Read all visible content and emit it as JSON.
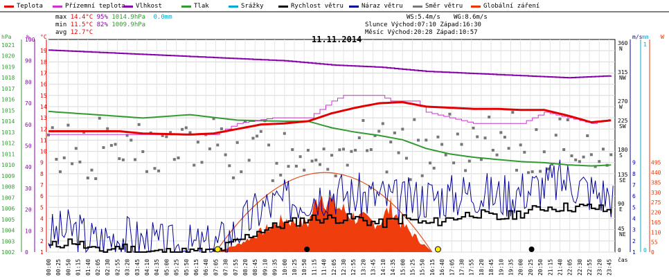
{
  "legend": [
    {
      "label": "Teplota",
      "color": "#e30000"
    },
    {
      "label": "Přízemní teplota",
      "color": "#cc33cc"
    },
    {
      "label": "Vlhkost",
      "color": "#8800aa"
    },
    {
      "label": "Tlak",
      "color": "#339933"
    },
    {
      "label": "Srážky",
      "color": "#00aacc"
    },
    {
      "label": "Rychlost větru",
      "color": "#000000"
    },
    {
      "label": "Náraz větru",
      "color": "#000099"
    },
    {
      "label": "Směr větru",
      "color": "#777777"
    },
    {
      "label": "Globální záření",
      "color": "#ee3300"
    }
  ],
  "stats": {
    "max_label": "max",
    "max_temp": "14.4°C",
    "max_hum": "95%",
    "max_press": "1014.9hPa",
    "rain": "0.0mm",
    "min_label": "min",
    "min_temp": "11.5°C",
    "min_hum": "82%",
    "min_press": "1009.9hPa",
    "avg_label": "avg",
    "avg_temp": "12.7°C",
    "ws": "WS:5.4m/s",
    "wg": "WG:8.6m/s",
    "sun": "Slunce Východ:07:10  Západ:16:30",
    "moon": "Měsíc  Východ:20:28  Západ:10:57"
  },
  "chart_data": {
    "type": "line",
    "title": "11.11.2014",
    "xlabel": "čas",
    "x_ticks": [
      "00:00",
      "00:25",
      "00:50",
      "01:15",
      "01:40",
      "02:05",
      "02:30",
      "02:55",
      "03:20",
      "03:45",
      "04:10",
      "04:35",
      "05:00",
      "05:25",
      "05:50",
      "06:15",
      "06:40",
      "07:05",
      "07:30",
      "07:55",
      "08:20",
      "08:45",
      "09:10",
      "09:35",
      "10:00",
      "10:25",
      "10:50",
      "11:15",
      "11:40",
      "12:05",
      "12:30",
      "12:55",
      "13:20",
      "13:45",
      "14:10",
      "14:35",
      "15:00",
      "15:25",
      "15:50",
      "16:15",
      "16:40",
      "17:05",
      "17:30",
      "17:55",
      "18:20",
      "18:45",
      "19:10",
      "19:35",
      "20:00",
      "20:25",
      "20:50",
      "21:15",
      "21:40",
      "22:05",
      "22:30",
      "22:55",
      "23:20",
      "23:45"
    ],
    "axes": {
      "hpa": {
        "label": "hPa",
        "ticks": [
          "1002",
          "1003",
          "1004",
          "1005",
          "1006",
          "1007",
          "1008",
          "1009",
          "1010",
          "1011",
          "1012",
          "1013",
          "1014",
          "1015",
          "1016",
          "1017",
          "1018",
          "1019",
          "1020",
          "1021"
        ]
      },
      "percent": {
        "label": "%",
        "ticks": [
          "0",
          "10",
          "20",
          "30",
          "40",
          "50",
          "60",
          "70",
          "80",
          "90",
          "100"
        ]
      },
      "celsius": {
        "label": "°C",
        "ticks": [
          "1",
          "2",
          "3",
          "4",
          "5",
          "6",
          "7",
          "8",
          "9",
          "10",
          "11",
          "12",
          "13",
          "14",
          "15",
          "16",
          "17",
          "18",
          "19"
        ]
      },
      "ms": {
        "label": "m/s",
        "ticks": [
          "1",
          "2",
          "3",
          "4",
          "5",
          "6",
          "7",
          "8",
          "9"
        ]
      },
      "mm": {
        "label": "mm",
        "ticks": [
          "0",
          "1"
        ]
      },
      "wm2": {
        "label": "W",
        "ticks": [
          "0",
          "55",
          "110",
          "165",
          "220",
          "275",
          "330",
          "385",
          "440",
          "495"
        ]
      },
      "direction": {
        "ticks": [
          "360 N",
          "315 NW",
          "270 W",
          "225 SW",
          "180 S",
          "135 SE",
          "90 E",
          "45 NE",
          "0"
        ]
      }
    },
    "series": [
      {
        "name": "Teplota",
        "unit": "°C",
        "keypoints": [
          [
            "00:00",
            11.8
          ],
          [
            "03:00",
            11.8
          ],
          [
            "04:00",
            11.6
          ],
          [
            "06:00",
            11.5
          ],
          [
            "07:00",
            11.6
          ],
          [
            "08:00",
            12.0
          ],
          [
            "09:00",
            12.4
          ],
          [
            "10:00",
            12.5
          ],
          [
            "11:00",
            12.7
          ],
          [
            "12:00",
            13.4
          ],
          [
            "13:00",
            13.9
          ],
          [
            "14:00",
            14.3
          ],
          [
            "15:00",
            14.4
          ],
          [
            "16:00",
            14.0
          ],
          [
            "17:00",
            13.9
          ],
          [
            "18:00",
            13.8
          ],
          [
            "19:00",
            13.8
          ],
          [
            "20:00",
            13.7
          ],
          [
            "21:00",
            13.7
          ],
          [
            "22:00",
            13.2
          ],
          [
            "23:00",
            12.6
          ],
          [
            "23:59",
            12.8
          ]
        ]
      },
      {
        "name": "Přízemní teplota",
        "unit": "°C",
        "keypoints": [
          [
            "00:00",
            11.5
          ],
          [
            "06:30",
            11.5
          ],
          [
            "07:00",
            11.5
          ],
          [
            "07:30",
            12.0
          ],
          [
            "08:00",
            12.5
          ],
          [
            "09:30",
            13.0
          ],
          [
            "11:00",
            13.0
          ],
          [
            "12:00",
            14.5
          ],
          [
            "12:30",
            15.0
          ],
          [
            "14:00",
            15.0
          ],
          [
            "14:30",
            14.5
          ],
          [
            "15:30",
            14.5
          ],
          [
            "16:00",
            13.5
          ],
          [
            "17:00",
            13.0
          ],
          [
            "18:00",
            12.5
          ],
          [
            "20:00",
            12.5
          ],
          [
            "21:00",
            13.5
          ],
          [
            "22:00",
            13.0
          ],
          [
            "23:00",
            12.5
          ],
          [
            "23:59",
            13.0
          ]
        ]
      },
      {
        "name": "Vlhkost",
        "unit": "%",
        "keypoints": [
          [
            "00:00",
            95
          ],
          [
            "02:00",
            94
          ],
          [
            "04:00",
            93
          ],
          [
            "06:00",
            92
          ],
          [
            "08:00",
            91
          ],
          [
            "10:00",
            90
          ],
          [
            "12:00",
            88
          ],
          [
            "14:00",
            87
          ],
          [
            "16:00",
            85
          ],
          [
            "18:00",
            84
          ],
          [
            "20:00",
            83
          ],
          [
            "22:00",
            82
          ],
          [
            "23:59",
            83
          ]
        ]
      },
      {
        "name": "Tlak",
        "unit": "hPa",
        "keypoints": [
          [
            "00:00",
            1014.9
          ],
          [
            "02:00",
            1014.6
          ],
          [
            "04:00",
            1014.3
          ],
          [
            "06:00",
            1014.6
          ],
          [
            "08:00",
            1014.1
          ],
          [
            "10:00",
            1014.0
          ],
          [
            "11:00",
            1014.0
          ],
          [
            "12:00",
            1013.4
          ],
          [
            "13:00",
            1013.0
          ],
          [
            "14:00",
            1012.7
          ],
          [
            "15:00",
            1012.3
          ],
          [
            "16:00",
            1011.5
          ],
          [
            "17:00",
            1011.0
          ],
          [
            "18:00",
            1010.7
          ],
          [
            "19:00",
            1010.5
          ],
          [
            "20:00",
            1010.3
          ],
          [
            "21:00",
            1010.2
          ],
          [
            "22:00",
            1010.0
          ],
          [
            "23:00",
            1009.9
          ],
          [
            "23:59",
            1010.0
          ]
        ]
      },
      {
        "name": "Srážky",
        "unit": "mm",
        "total": 0.0
      },
      {
        "name": "Rychlost větru",
        "unit": "m/s",
        "keypoints": [
          [
            "00:00",
            1.5
          ],
          [
            "01:00",
            2.0
          ],
          [
            "01:30",
            1.5
          ],
          [
            "02:00",
            1.0
          ],
          [
            "03:00",
            1.5
          ],
          [
            "04:00",
            1.0
          ],
          [
            "05:00",
            1.0
          ],
          [
            "06:00",
            1.0
          ],
          [
            "07:00",
            1.0
          ],
          [
            "07:30",
            1.5
          ],
          [
            "08:00",
            2.0
          ],
          [
            "09:00",
            3.0
          ],
          [
            "10:00",
            3.5
          ],
          [
            "11:00",
            4.0
          ],
          [
            "12:00",
            4.0
          ],
          [
            "13:00",
            4.0
          ],
          [
            "14:00",
            3.5
          ],
          [
            "15:00",
            4.0
          ],
          [
            "16:00",
            3.5
          ],
          [
            "17:00",
            4.0
          ],
          [
            "18:00",
            4.5
          ],
          [
            "19:00",
            4.0
          ],
          [
            "20:00",
            4.5
          ],
          [
            "21:00",
            5.0
          ],
          [
            "22:00",
            5.0
          ],
          [
            "23:00",
            5.0
          ],
          [
            "23:59",
            4.5
          ]
        ]
      },
      {
        "name": "Náraz větru",
        "unit": "m/s",
        "keypoints": [
          [
            "00:00",
            2.5
          ],
          [
            "01:00",
            3.0
          ],
          [
            "02:00",
            2.0
          ],
          [
            "03:00",
            2.5
          ],
          [
            "04:00",
            2.0
          ],
          [
            "05:00",
            1.5
          ],
          [
            "06:00",
            1.5
          ],
          [
            "07:00",
            1.5
          ],
          [
            "08:00",
            3.0
          ],
          [
            "09:00",
            5.0
          ],
          [
            "10:00",
            5.5
          ],
          [
            "11:00",
            6.0
          ],
          [
            "12:00",
            6.5
          ],
          [
            "13:00",
            6.0
          ],
          [
            "14:00",
            6.0
          ],
          [
            "15:00",
            5.5
          ],
          [
            "16:00",
            6.0
          ],
          [
            "17:00",
            6.0
          ],
          [
            "18:00",
            6.5
          ],
          [
            "19:00",
            6.0
          ],
          [
            "20:00",
            6.5
          ],
          [
            "21:00",
            7.0
          ],
          [
            "22:00",
            7.5
          ],
          [
            "23:00",
            6.5
          ],
          [
            "23:59",
            6.0
          ]
        ]
      },
      {
        "name": "Směr větru",
        "unit": "°",
        "typical_range": [
          135,
          225
        ]
      },
      {
        "name": "Globální záření",
        "unit": "W",
        "keypoints": [
          [
            "07:05",
            0
          ],
          [
            "08:00",
            40
          ],
          [
            "09:00",
            110
          ],
          [
            "10:00",
            180
          ],
          [
            "11:00",
            160
          ],
          [
            "11:30",
            330
          ],
          [
            "12:00",
            270
          ],
          [
            "13:00",
            190
          ],
          [
            "14:00",
            160
          ],
          [
            "14:30",
            250
          ],
          [
            "15:00",
            150
          ],
          [
            "15:45",
            60
          ],
          [
            "16:15",
            0
          ]
        ]
      }
    ],
    "theoretical_radiation_peak": {
      "time": "11:45",
      "value": 440
    },
    "ylim_celsius": [
      1,
      20
    ],
    "legend_position": "top"
  }
}
